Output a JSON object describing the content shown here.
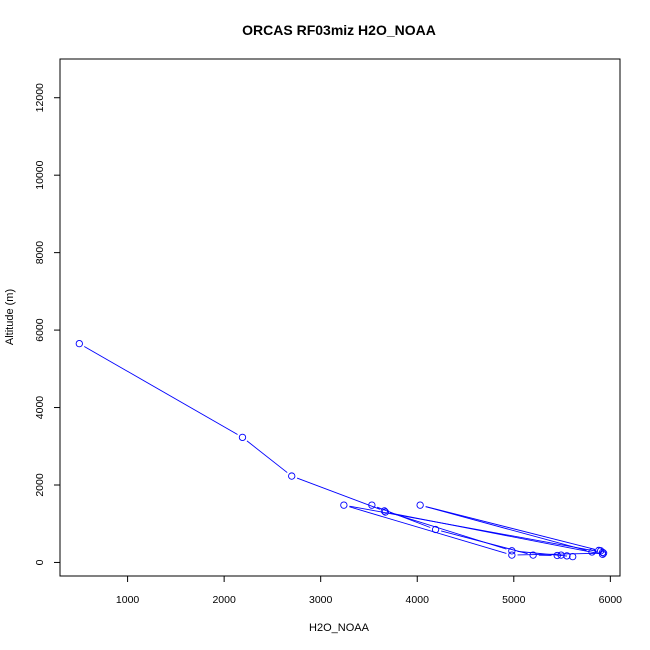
{
  "chart_data": {
    "type": "line",
    "title": "ORCAS RF03miz H2O_NOAA",
    "xlabel": "H2O_NOAA",
    "ylabel": "Altitude (m)",
    "xlim": [
      300,
      6100
    ],
    "ylim": [
      -350,
      13000
    ],
    "xticks": [
      1000,
      2000,
      3000,
      4000,
      5000,
      6000
    ],
    "yticks": [
      0,
      2000,
      4000,
      6000,
      8000,
      10000,
      12000
    ],
    "grid": false,
    "legend": "none",
    "series_color": "#0000ff",
    "markers": "open-circle",
    "x": [
      500,
      2190,
      2700,
      3660,
      4980,
      5610,
      5490,
      5550,
      5450,
      5200,
      4190,
      3530,
      3670,
      5920,
      5880,
      5810,
      4030,
      5900,
      5930,
      4980,
      3240,
      5920
    ],
    "y": [
      5650,
      3230,
      2230,
      1330,
      300,
      150,
      190,
      170,
      180,
      190,
      850,
      1480,
      1300,
      210,
      310,
      270,
      1480,
      300,
      240,
      190,
      1480,
      260
    ]
  }
}
